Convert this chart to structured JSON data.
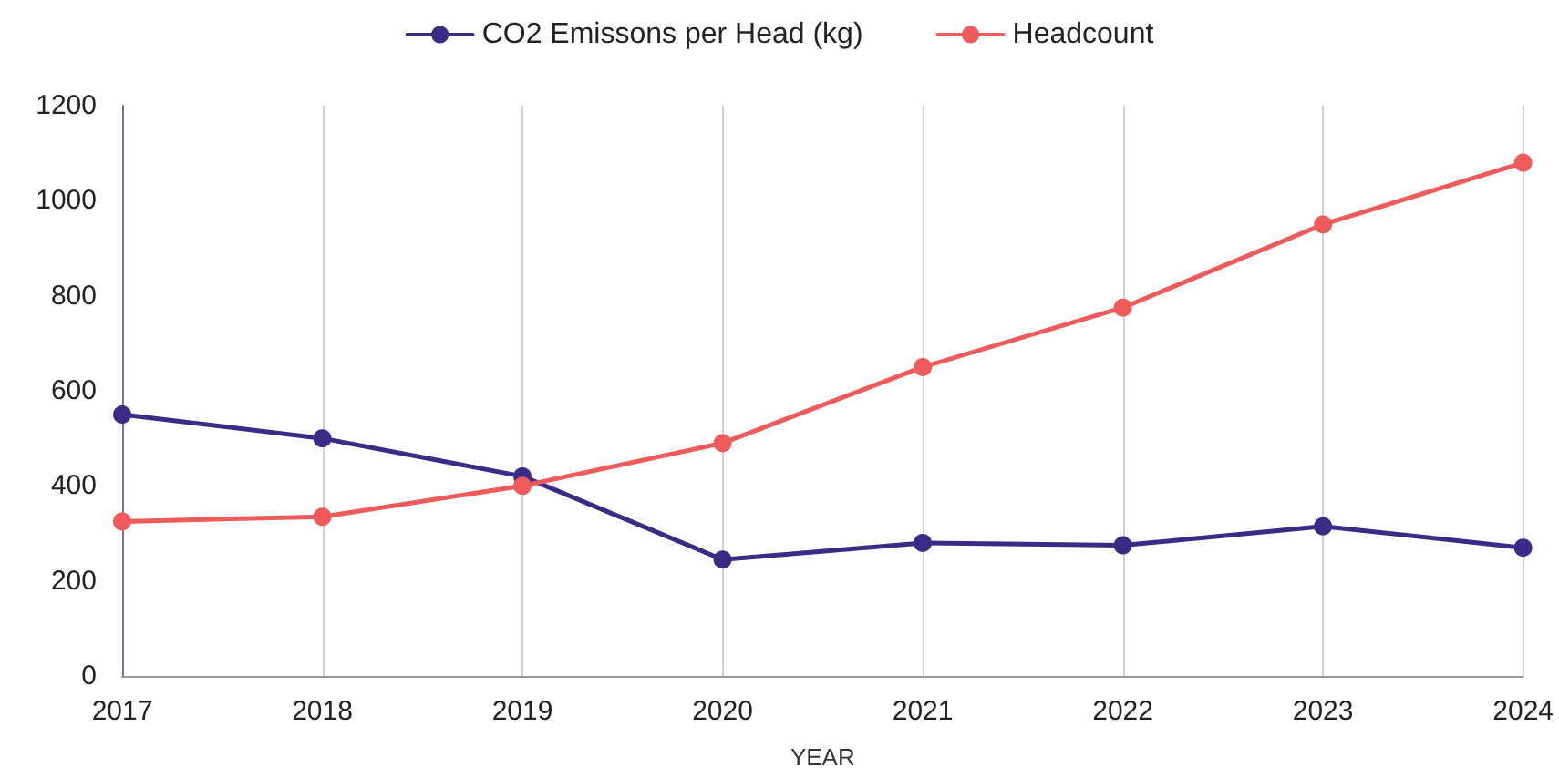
{
  "chart_data": {
    "type": "line",
    "xlabel": "YEAR",
    "categories": [
      "2017",
      "2018",
      "2019",
      "2020",
      "2021",
      "2022",
      "2023",
      "2024"
    ],
    "series": [
      {
        "name": "CO2 Emissons per Head (kg)",
        "color": "#3b2a86",
        "values": [
          550,
          500,
          420,
          245,
          280,
          275,
          315,
          270
        ]
      },
      {
        "name": "Headcount",
        "color": "#ef5b5b",
        "values": [
          325,
          335,
          400,
          490,
          650,
          775,
          950,
          1080
        ]
      }
    ],
    "ylim": [
      0,
      1200
    ],
    "yticks": [
      0,
      200,
      400,
      600,
      800,
      1000,
      1200
    ],
    "grid": "x",
    "legend": "top",
    "marker": "circle",
    "line_style": "solid"
  }
}
